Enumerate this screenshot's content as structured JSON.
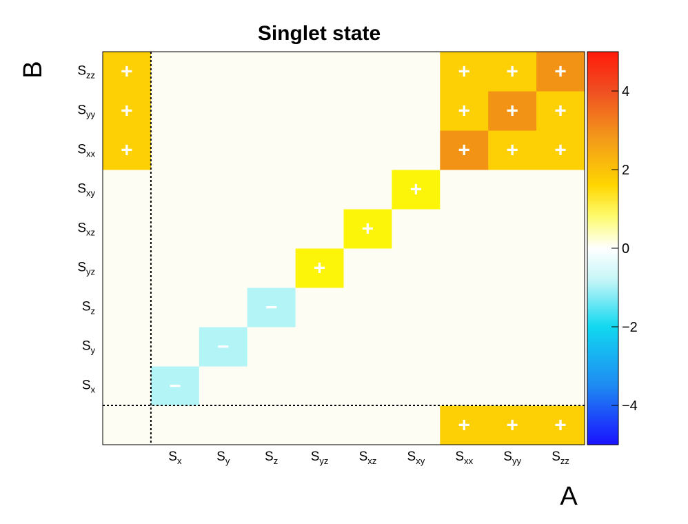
{
  "chart_data": {
    "type": "heatmap",
    "title": "Singlet state",
    "xlabel": "A",
    "ylabel": "B",
    "x_categories": [
      "",
      "S_x",
      "S_y",
      "S_z",
      "S_yz",
      "S_xz",
      "S_xy",
      "S_xx",
      "S_yy",
      "S_zz"
    ],
    "y_categories": [
      "",
      "S_x",
      "S_y",
      "S_z",
      "S_yz",
      "S_xz",
      "S_xy",
      "S_xx",
      "S_yy",
      "S_zz"
    ],
    "values": [
      [
        0,
        0,
        0,
        0,
        0,
        0,
        0,
        2,
        2,
        2
      ],
      [
        0,
        -1,
        0,
        0,
        0,
        0,
        0,
        0,
        0,
        0
      ],
      [
        0,
        0,
        -1,
        0,
        0,
        0,
        0,
        0,
        0,
        0
      ],
      [
        0,
        0,
        0,
        -1,
        0,
        0,
        0,
        0,
        0,
        0
      ],
      [
        0,
        0,
        0,
        0,
        1,
        0,
        0,
        0,
        0,
        0
      ],
      [
        0,
        0,
        0,
        0,
        0,
        1,
        0,
        0,
        0,
        0
      ],
      [
        0,
        0,
        0,
        0,
        0,
        0,
        1,
        0,
        0,
        0
      ],
      [
        2,
        0,
        0,
        0,
        0,
        0,
        0,
        3,
        2,
        2
      ],
      [
        2,
        0,
        0,
        0,
        0,
        0,
        0,
        2,
        3,
        2
      ],
      [
        2,
        0,
        0,
        0,
        0,
        0,
        0,
        2,
        2,
        3
      ]
    ],
    "signs": [
      [
        "",
        "",
        "",
        "",
        "",
        "",
        "",
        "+",
        "+",
        "+"
      ],
      [
        "",
        "−",
        "",
        "",
        "",
        "",
        "",
        "",
        "",
        ""
      ],
      [
        "",
        "",
        "−",
        "",
        "",
        "",
        "",
        "",
        "",
        ""
      ],
      [
        "",
        "",
        "",
        "−",
        "",
        "",
        "",
        "",
        "",
        ""
      ],
      [
        "",
        "",
        "",
        "",
        "+",
        "",
        "",
        "",
        "",
        ""
      ],
      [
        "",
        "",
        "",
        "",
        "",
        "+",
        "",
        "",
        "",
        ""
      ],
      [
        "",
        "",
        "",
        "",
        "",
        "",
        "+",
        "",
        "",
        ""
      ],
      [
        "+",
        "",
        "",
        "",
        "",
        "",
        "",
        "+",
        "+",
        "+"
      ],
      [
        "+",
        "",
        "",
        "",
        "",
        "",
        "",
        "+",
        "+",
        "+"
      ],
      [
        "+",
        "",
        "",
        "",
        "",
        "",
        "",
        "+",
        "+",
        "+"
      ]
    ],
    "zlim": [
      -5,
      5
    ],
    "colorbar_ticks": [
      {
        "value": 4,
        "label": "4"
      },
      {
        "value": 2,
        "label": "2"
      },
      {
        "value": 0,
        "label": "0"
      },
      {
        "value": -2,
        "label": "−2"
      },
      {
        "value": -4,
        "label": "−4"
      }
    ],
    "dashed_separators": {
      "x_after_index": 0,
      "y_after_index": 0
    }
  }
}
